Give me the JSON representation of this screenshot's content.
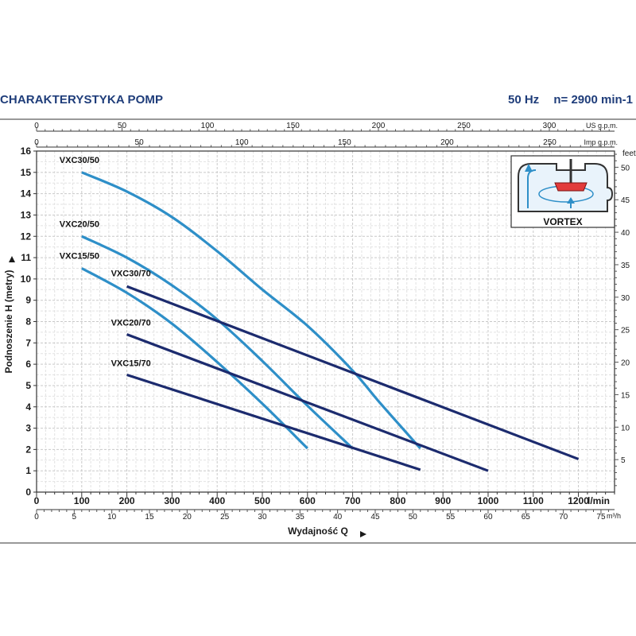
{
  "header": {
    "title": "CHARAKTERYSTYKA POMP",
    "frequency": "50 Hz",
    "speed": "n= 2900 min-1"
  },
  "chart_data": {
    "type": "line",
    "ylabel": "Podnoszenie H (metry)",
    "xlabel": "Wydajność Q",
    "y_unit_right": "feet",
    "xlim": [
      0,
      1280
    ],
    "ylim": [
      0,
      16
    ],
    "grid": true,
    "x_ticks_lmin": [
      0,
      100,
      200,
      300,
      400,
      500,
      600,
      700,
      800,
      900,
      1000,
      1100,
      1200
    ],
    "x_unit_lmin": "l/min",
    "x_ticks_m3h": [
      0,
      5,
      10,
      15,
      20,
      25,
      30,
      35,
      40,
      45,
      50,
      55,
      60,
      65,
      70,
      75
    ],
    "x_unit_m3h": "m³/h",
    "x_ticks_usgpm": [
      0,
      50,
      100,
      150,
      200,
      250,
      300
    ],
    "x_unit_usgpm": "US g.p.m.",
    "x_ticks_impgpm": [
      0,
      50,
      100,
      150,
      200,
      250
    ],
    "x_unit_impgpm": "Imp g.p.m.",
    "y_ticks_m": [
      0,
      1,
      2,
      3,
      4,
      5,
      6,
      7,
      8,
      9,
      10,
      11,
      12,
      13,
      14,
      15,
      16
    ],
    "y_ticks_feet": [
      5,
      10,
      15,
      20,
      25,
      30,
      35,
      40,
      45,
      50
    ],
    "series": [
      {
        "name": "VXC30/50",
        "color": "#2e8fc8",
        "x": [
          100,
          200,
          300,
          400,
          500,
          600,
          700,
          760,
          850
        ],
        "y": [
          15,
          14.1,
          12.9,
          11.3,
          9.5,
          7.8,
          5.7,
          4.2,
          2.05
        ]
      },
      {
        "name": "VXC20/50",
        "color": "#2e8fc8",
        "x": [
          100,
          200,
          300,
          400,
          500,
          600,
          700
        ],
        "y": [
          12,
          11,
          9.7,
          8.1,
          6.15,
          4.05,
          2.05
        ]
      },
      {
        "name": "VXC15/50",
        "color": "#2e8fc8",
        "x": [
          100,
          200,
          300,
          400,
          500,
          600
        ],
        "y": [
          10.5,
          9.35,
          7.9,
          6.1,
          4.15,
          2.05
        ]
      },
      {
        "name": "VXC30/70",
        "color": "#1c2b6e",
        "x": [
          200,
          1200
        ],
        "y": [
          9.65,
          1.55
        ]
      },
      {
        "name": "VXC20/70",
        "color": "#1c2b6e",
        "x": [
          200,
          1000
        ],
        "y": [
          7.4,
          1.0
        ]
      },
      {
        "name": "VXC15/70",
        "color": "#1c2b6e",
        "x": [
          200,
          850
        ],
        "y": [
          5.5,
          1.05
        ]
      }
    ]
  },
  "inset": {
    "label": "VORTEX",
    "icons": [
      "vortex-impeller-icon",
      "flow-arrow-up-icon",
      "flow-arrow-in-icon"
    ]
  }
}
